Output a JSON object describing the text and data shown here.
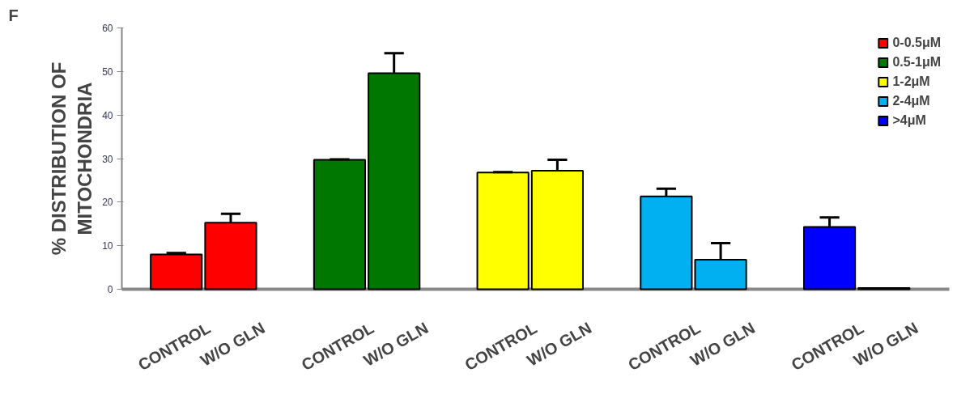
{
  "chart_data": {
    "type": "bar",
    "annotations": [
      "F"
    ],
    "ylabel": "% DISTRIBUTION OF MITOCHONDRIA",
    "categories": [
      "CONTROL",
      "W/O GLN",
      "CONTROL",
      "W/O GLN",
      "CONTROL",
      "W/O GLN",
      "CONTROL",
      "W/O GLN",
      "CONTROL",
      "W/O GLN"
    ],
    "series": [
      {
        "name": "0-0.5μM",
        "color": "#ff0000",
        "values": [
          8.0,
          15.3,
          null,
          null,
          null,
          null,
          null,
          null,
          null,
          null
        ],
        "errors": [
          [
            8.0,
            8.3
          ],
          [
            15.3,
            17.3
          ],
          null,
          null,
          null,
          null,
          null,
          null,
          null,
          null
        ]
      },
      {
        "name": "0.5-1μM",
        "color": "#007700",
        "values": [
          null,
          null,
          29.7,
          49.6,
          null,
          null,
          null,
          null,
          null,
          null
        ],
        "errors": [
          null,
          null,
          [
            29.7,
            29.8
          ],
          [
            49.6,
            54.2
          ],
          null,
          null,
          null,
          null,
          null,
          null
        ]
      },
      {
        "name": "1-2μM",
        "color": "#ffff00",
        "values": [
          null,
          null,
          null,
          null,
          26.8,
          27.2,
          null,
          null,
          null,
          null
        ],
        "errors": [
          null,
          null,
          null,
          null,
          [
            26.8,
            26.9
          ],
          [
            27.2,
            29.7
          ],
          null,
          null,
          null,
          null
        ]
      },
      {
        "name": "2-4μM",
        "color": "#00b0f0",
        "values": [
          null,
          null,
          null,
          null,
          null,
          null,
          21.3,
          6.8,
          null,
          null
        ],
        "errors": [
          null,
          null,
          null,
          null,
          null,
          null,
          [
            21.3,
            23.1
          ],
          [
            6.8,
            10.6
          ],
          null,
          null
        ]
      },
      {
        "name": ">4μM",
        "color": "#0000ff",
        "values": [
          null,
          null,
          null,
          null,
          null,
          null,
          null,
          null,
          14.3,
          0.3
        ],
        "errors": [
          null,
          null,
          null,
          null,
          null,
          null,
          null,
          null,
          [
            14.3,
            16.5
          ],
          null
        ]
      }
    ],
    "ylim": [
      0,
      60
    ],
    "yticks": [
      0,
      10,
      20,
      30,
      40,
      50,
      60
    ],
    "grid": false,
    "legend": "top right"
  }
}
